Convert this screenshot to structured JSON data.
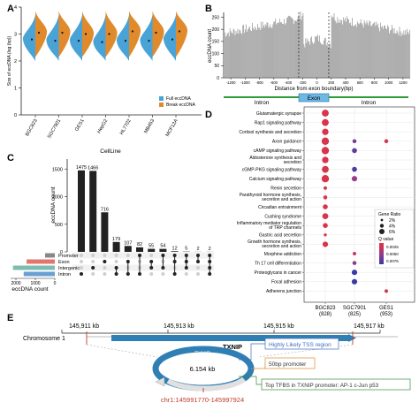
{
  "chart_data": [
    {
      "panel": "A",
      "type": "violin",
      "ylabel": "Size of eccDNA (log (bp))",
      "xlabel": "CellLine",
      "ylim": [
        0,
        4
      ],
      "yticks": [
        "0",
        "1",
        "2",
        "3",
        "4"
      ],
      "categories": [
        "BGC823",
        "SGC7901",
        "GES1",
        "HepG2",
        "HL7702",
        "MB453",
        "MCF12A"
      ],
      "legend_title": "",
      "series": [
        {
          "name": "Full eccDNA",
          "color": "#4aa3d6",
          "medians": [
            2.8,
            2.75,
            2.75,
            2.7,
            2.75,
            2.75,
            2.8
          ]
        },
        {
          "name": "Break eccDNA",
          "color": "#e08a2c",
          "medians": [
            3.05,
            3.05,
            3.0,
            3.0,
            3.1,
            3.05,
            3.1
          ]
        }
      ]
    },
    {
      "panel": "B",
      "type": "bar",
      "ylabel": "eccDNA count",
      "xlabel": "Distance from exon boundary(bp)",
      "xticks": [
        "-1200",
        "-1000",
        "-800",
        "-600",
        "-400",
        "-200",
        "0",
        "200",
        "400",
        "600",
        "800",
        "1000",
        "1200"
      ],
      "yticks": [
        "0",
        "50",
        "100",
        "150",
        "200",
        "250"
      ],
      "ylim": [
        0,
        270
      ],
      "region_labels": [
        "Intron",
        "Exon",
        "Intron"
      ]
    },
    {
      "panel": "C",
      "type": "bar",
      "ylabel": "eccDNA count",
      "ylim": [
        0,
        1600
      ],
      "yticks": [
        "0",
        "500",
        "1000",
        "1500"
      ],
      "values": [
        1475,
        1466,
        716,
        179,
        107,
        82,
        55,
        54,
        12,
        5,
        2,
        2
      ],
      "set_names": [
        "Promoter",
        "Exon",
        "Intergenic",
        "Intron"
      ],
      "set_colors": [
        "#888888",
        "#e4746e",
        "#7fbcb0",
        "#6a9fd4"
      ],
      "set_sizes": [
        500,
        1450,
        2150,
        1600
      ],
      "set_axis_ticks": [
        "2000",
        "1000",
        "0"
      ],
      "set_axis_label": "eccDNA count",
      "memberships": [
        [
          3
        ],
        [
          2
        ],
        [
          1
        ],
        [
          2,
          3
        ],
        [
          1,
          3
        ],
        [
          0,
          3
        ],
        [
          1,
          2
        ],
        [
          0,
          2
        ],
        [
          0,
          1,
          3
        ],
        [
          0,
          1,
          2
        ],
        [
          0,
          1
        ],
        [
          0,
          1,
          2,
          3
        ]
      ]
    },
    {
      "panel": "D",
      "type": "scatter",
      "pathways": [
        "Glutamatergic synapse",
        "Rap1 signaling pathway",
        "Cortisol synthesis and secretion",
        "Axon guidance",
        "cAMP signaling pathway",
        "Aldosterone synthesis and secretion",
        "cGMP-PKG signaling pathway",
        "Calcium signaling pathway",
        "Renin secretion",
        "Parathyroid hormone synthesis, secretion and action",
        "Circadian entrainment",
        "Cushing syndrome",
        "Inflammatory mediator regulation of TRP channels",
        "Gastric acid secretion",
        "Growth hormone synthesis, secretion and action",
        "Morphine addiction",
        "Th 17 cell differentiation",
        "Proteoglycans in cancer",
        "Focal adhesion",
        "Adherens junction"
      ],
      "groups": [
        {
          "name": "BGC823",
          "count": "(828)"
        },
        {
          "name": "SGC7901",
          "count": "(825)"
        },
        {
          "name": "GES1",
          "count": "(953)"
        }
      ],
      "points": [
        {
          "g": 0,
          "p": 0,
          "ratio": 0.06,
          "q": 0.0005
        },
        {
          "g": 0,
          "p": 1,
          "ratio": 0.06,
          "q": 0.0005
        },
        {
          "g": 0,
          "p": 2,
          "ratio": 0.055,
          "q": 0.0005
        },
        {
          "g": 0,
          "p": 3,
          "ratio": 0.065,
          "q": 0.0005
        },
        {
          "g": 0,
          "p": 4,
          "ratio": 0.065,
          "q": 0.0005
        },
        {
          "g": 0,
          "p": 5,
          "ratio": 0.055,
          "q": 0.0005
        },
        {
          "g": 0,
          "p": 6,
          "ratio": 0.06,
          "q": 0.0005
        },
        {
          "g": 0,
          "p": 7,
          "ratio": 0.065,
          "q": 0.0005
        },
        {
          "g": 0,
          "p": 8,
          "ratio": 0.025,
          "q": 0.0005
        },
        {
          "g": 0,
          "p": 9,
          "ratio": 0.03,
          "q": 0.0005
        },
        {
          "g": 0,
          "p": 10,
          "ratio": 0.04,
          "q": 0.0005
        },
        {
          "g": 0,
          "p": 11,
          "ratio": 0.05,
          "q": 0.0005
        },
        {
          "g": 0,
          "p": 12,
          "ratio": 0.04,
          "q": 0.0005
        },
        {
          "g": 0,
          "p": 13,
          "ratio": 0.02,
          "q": 0.0005
        },
        {
          "g": 0,
          "p": 14,
          "ratio": 0.045,
          "q": 0.0005
        },
        {
          "g": 1,
          "p": 3,
          "ratio": 0.03,
          "q": 0.0035
        },
        {
          "g": 1,
          "p": 4,
          "ratio": 0.04,
          "q": 0.004
        },
        {
          "g": 1,
          "p": 6,
          "ratio": 0.04,
          "q": 0.0045
        },
        {
          "g": 1,
          "p": 7,
          "ratio": 0.045,
          "q": 0.0025
        },
        {
          "g": 1,
          "p": 15,
          "ratio": 0.025,
          "q": 0.001
        },
        {
          "g": 1,
          "p": 16,
          "ratio": 0.03,
          "q": 0.003
        },
        {
          "g": 1,
          "p": 17,
          "ratio": 0.045,
          "q": 0.005
        },
        {
          "g": 1,
          "p": 18,
          "ratio": 0.045,
          "q": 0.005
        },
        {
          "g": 2,
          "p": 3,
          "ratio": 0.03,
          "q": 0.0005
        },
        {
          "g": 2,
          "p": 19,
          "ratio": 0.025,
          "q": 0.0008
        }
      ],
      "size_legend_title": "Gene Ratio",
      "size_legend": [
        {
          "label": "2%",
          "ratio": 0.02
        },
        {
          "label": "4%",
          "ratio": 0.04
        },
        {
          "label": "6%",
          "ratio": 0.06
        }
      ],
      "color_legend_title": "Q value",
      "color_legend_ticks": [
        "0.0025",
        "0.0050",
        "0.0075"
      ]
    }
  ],
  "panel_labels": [
    "A",
    "B",
    "C",
    "D",
    "E"
  ],
  "panel_e": {
    "chromosome": "Chromosome 1",
    "positions": [
      "145,911 kb",
      "145,913 kb",
      "145,915 kb",
      "145,917 kb"
    ],
    "gene": "TXNIP",
    "circle_label": "TXNIP",
    "circle_size": "6.154 kb",
    "coordinates": "chr1:145991770-145997924",
    "annotations": [
      {
        "text": "Highly Likely TSS region",
        "color": "#3f6fbf"
      },
      {
        "text": "50bp promoter",
        "color": "#e08a2c"
      },
      {
        "text": "Top TFBS in TXNIP promoter: AP-1 c-Jun p53",
        "color": "#3a8a3a"
      }
    ]
  }
}
